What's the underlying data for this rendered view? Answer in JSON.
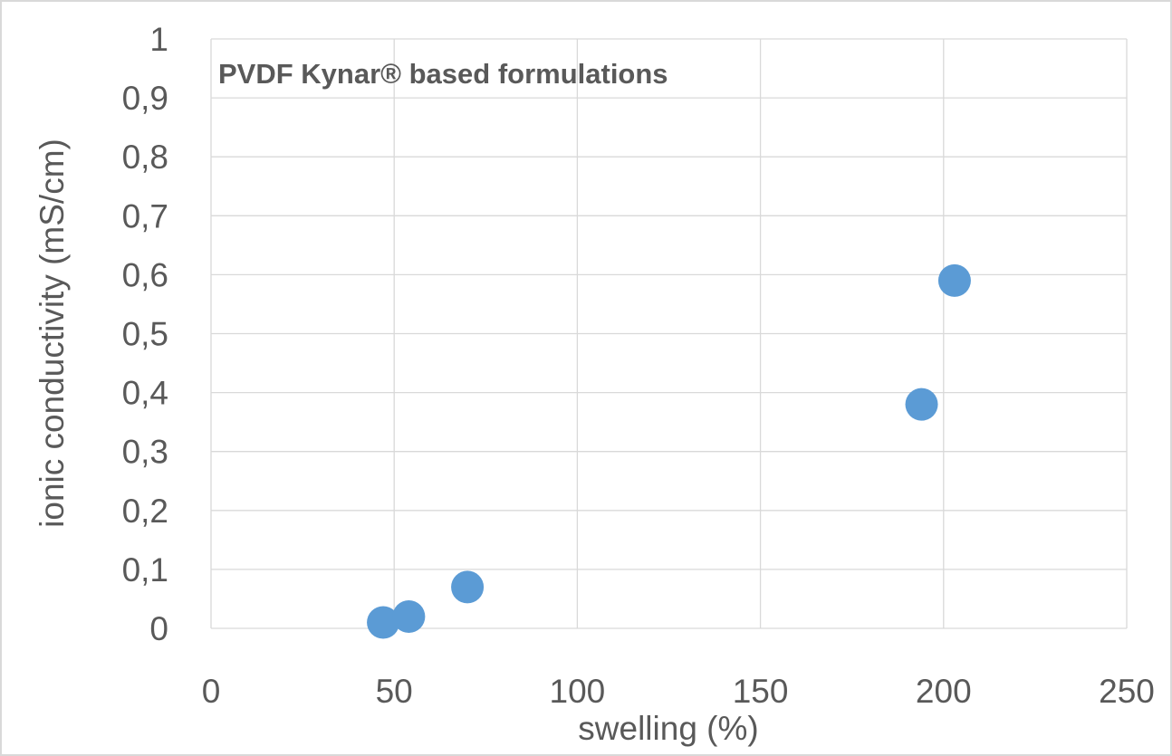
{
  "chart_data": {
    "type": "scatter",
    "title": "PVDF Kynar® based formulations",
    "xlabel": "swelling (%)",
    "ylabel": "ionic conductivity (mS/cm)",
    "xlim": [
      0,
      250
    ],
    "ylim": [
      0,
      1
    ],
    "x_ticks": [
      0,
      50,
      100,
      150,
      200,
      250
    ],
    "y_ticks": [
      0,
      0.1,
      0.2,
      0.3,
      0.4,
      0.5,
      0.6,
      0.7,
      0.8,
      0.9,
      1
    ],
    "x_tick_labels": [
      "0",
      "50",
      "100",
      "150",
      "200",
      "250"
    ],
    "y_tick_labels": [
      "0",
      "0,1",
      "0,2",
      "0,3",
      "0,4",
      "0,5",
      "0,6",
      "0,7",
      "0,8",
      "0,9",
      "1"
    ],
    "grid": true,
    "legend": "none",
    "series": [
      {
        "name": "PVDF Kynar",
        "color": "#5b9bd5",
        "x": [
          47,
          54,
          70,
          194,
          203
        ],
        "y": [
          0.01,
          0.02,
          0.07,
          0.38,
          0.59
        ]
      }
    ]
  }
}
